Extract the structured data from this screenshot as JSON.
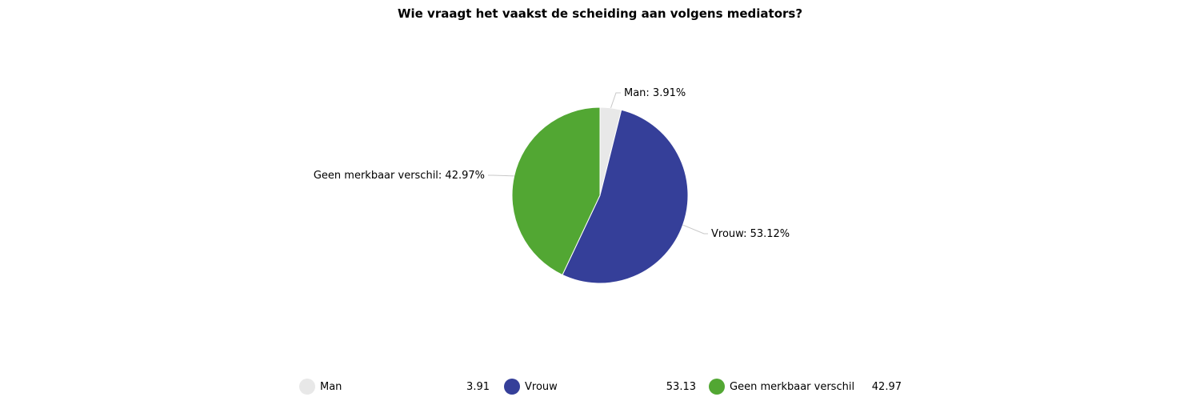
{
  "chart_data": {
    "type": "pie",
    "title": "Wie vraagt het vaakst de scheiding aan volgens mediators?",
    "slices": [
      {
        "name": "Man",
        "value": 3.91,
        "label": "Man: 3.91%",
        "legend_value": "3.91",
        "color": "#e8e8e8"
      },
      {
        "name": "Vrouw",
        "value": 53.12,
        "label": "Vrouw: 53.12%",
        "legend_value": "53.13",
        "color": "#353f99"
      },
      {
        "name": "Geen merkbaar verschil",
        "value": 42.97,
        "label": "Geen merkbaar verschil: 42.97%",
        "legend_value": "42.97",
        "color": "#52a733"
      }
    ],
    "legend_placement": "bottom"
  }
}
